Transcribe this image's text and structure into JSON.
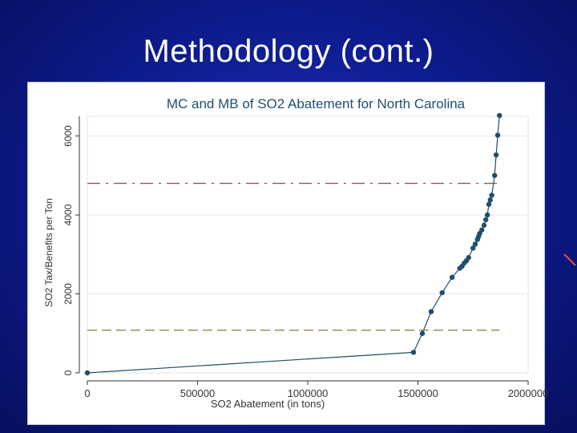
{
  "slide": {
    "title": "Methodology (cont.)"
  },
  "chart_data": {
    "type": "line",
    "title": "MC and MB of SO2 Abatement for North Carolina",
    "xlabel": "SO2 Abatement (in tons)",
    "ylabel": "SO2 Tax/Benefits per Ton",
    "xlim": [
      0,
      2000000
    ],
    "ylim": [
      0,
      6500
    ],
    "xticks": [
      "0",
      "500000",
      "1000000",
      "1500000",
      "2000000"
    ],
    "yticks": [
      "0",
      "2000",
      "4000",
      "6000"
    ],
    "grid": "horizontal",
    "series": [
      {
        "style": "line-markers",
        "color": "#1f4e6e",
        "x": [
          0,
          1480000,
          1520000,
          1560000,
          1610000,
          1655000,
          1690000,
          1700000,
          1710000,
          1720000,
          1730000,
          1750000,
          1760000,
          1770000,
          1775000,
          1780000,
          1790000,
          1800000,
          1808000,
          1815000,
          1822000,
          1828000,
          1835000,
          1848000,
          1855000,
          1862000,
          1870000
        ],
        "y": [
          0,
          520,
          1000,
          1550,
          2030,
          2420,
          2650,
          2700,
          2780,
          2840,
          2920,
          3160,
          3260,
          3380,
          3450,
          3530,
          3620,
          3740,
          3880,
          4000,
          4270,
          4380,
          4500,
          5000,
          5520,
          6020,
          6520
        ]
      },
      {
        "style": "dash-dot",
        "color": "#7a3040",
        "x": [
          0,
          1870000
        ],
        "y": [
          4800,
          4800
        ]
      },
      {
        "style": "dashed",
        "color": "#7a6a2a",
        "x": [
          0,
          1870000
        ],
        "y": [
          1080,
          1080
        ]
      }
    ]
  }
}
